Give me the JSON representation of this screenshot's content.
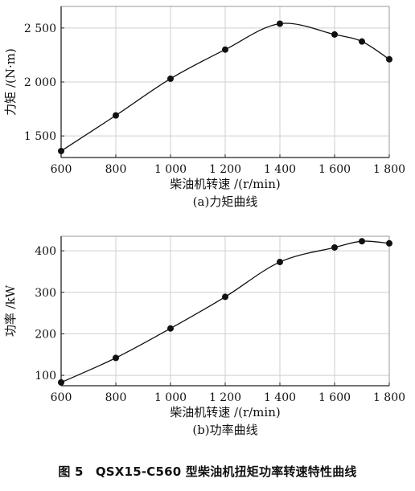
{
  "figure_caption": "图 5　QSX15-C560 型柴油机扭矩功率转速特性曲线",
  "chart_data": [
    {
      "type": "line",
      "subtitle": "(a)力矩曲线",
      "xlabel": "柴油机转速 /(r/min)",
      "ylabel": "力矩 /(N·m)",
      "x": [
        600,
        800,
        1000,
        1200,
        1400,
        1600,
        1700,
        1800
      ],
      "y": [
        1360,
        1690,
        2030,
        2300,
        2540,
        2440,
        2375,
        2210
      ],
      "xlim": [
        600,
        1800
      ],
      "ylim": [
        1300,
        2700
      ],
      "xticks": [
        600,
        800,
        1000,
        1200,
        1400,
        1600,
        1800
      ],
      "xtick_labels": [
        "600",
        "800",
        "1 000",
        "1 200",
        "1 400",
        "1 600",
        "1 800"
      ],
      "yticks": [
        1500,
        2000,
        2500
      ],
      "ytick_labels": [
        "1 500",
        "2 000",
        "2 500"
      ],
      "grid": true,
      "legend": "none"
    },
    {
      "type": "line",
      "subtitle": "(b)功率曲线",
      "xlabel": "柴油机转速 /(r/min)",
      "ylabel": "功率 /kW",
      "x": [
        600,
        800,
        1000,
        1200,
        1400,
        1600,
        1700,
        1800
      ],
      "y": [
        83,
        142,
        213,
        289,
        373,
        408,
        423,
        418
      ],
      "xlim": [
        600,
        1800
      ],
      "ylim": [
        75,
        435
      ],
      "xticks": [
        600,
        800,
        1000,
        1200,
        1400,
        1600,
        1800
      ],
      "xtick_labels": [
        "600",
        "800",
        "1 000",
        "1 200",
        "1 400",
        "1 600",
        "1 800"
      ],
      "yticks": [
        100,
        200,
        300,
        400
      ],
      "ytick_labels": [
        "100",
        "200",
        "300",
        "400"
      ],
      "grid": true,
      "legend": "none"
    }
  ]
}
